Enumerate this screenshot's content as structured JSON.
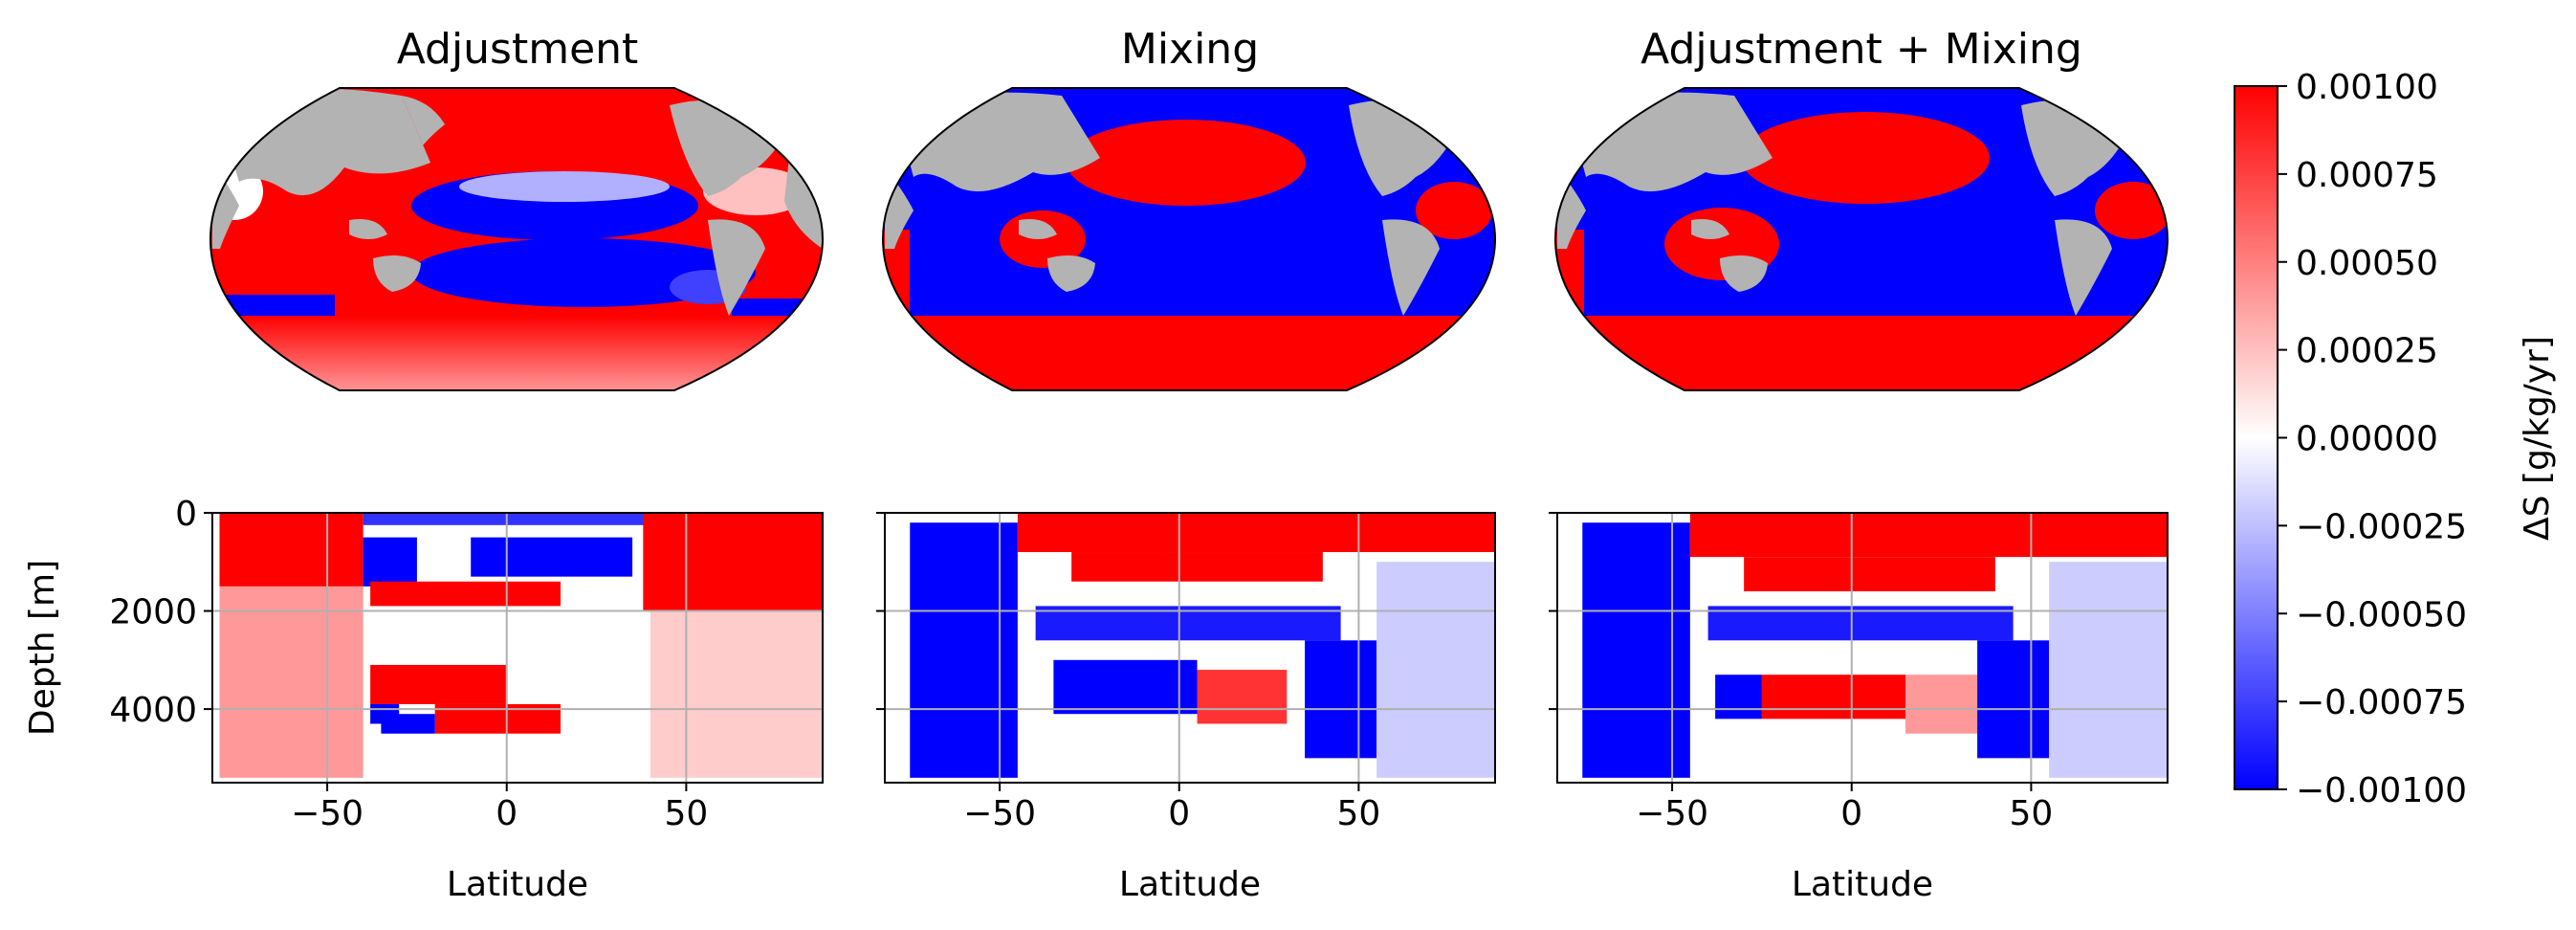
{
  "figure": {
    "panel_titles": [
      "Adjustment",
      "Mixing",
      "Adjustment + Mixing"
    ]
  },
  "colorbar": {
    "label": "ΔS [g/kg/yr]",
    "ticks": [
      "0.00100",
      "0.00075",
      "0.00050",
      "0.00025",
      "0.00000",
      "−0.00025",
      "−0.00050",
      "−0.00075",
      "−0.00100"
    ],
    "vmin": -0.001,
    "vmax": 0.001,
    "cmap": "bwr",
    "colors": {
      "min": "#0000ff",
      "mid": "#ffffff",
      "max": "#ff0000"
    }
  },
  "maps": {
    "projection": "Robinson",
    "land_color": "#b3b3b3"
  },
  "chart_data": [
    {
      "type": "heatmap",
      "title": "Adjustment",
      "xlabel": "Latitude",
      "ylabel": "Depth [m]",
      "xlim": [
        -82,
        88
      ],
      "ylim": [
        5500,
        0
      ],
      "xticks": [
        "−50",
        "0",
        "50"
      ],
      "yticks": [
        "0",
        "2000",
        "4000"
      ],
      "grid": true,
      "regions": [
        {
          "x": [
            -80,
            -40
          ],
          "y": [
            0,
            1500
          ],
          "value": 0.001
        },
        {
          "x": [
            -40,
            40
          ],
          "y": [
            0,
            250
          ],
          "value": -0.0008
        },
        {
          "x": [
            -40,
            -25
          ],
          "y": [
            500,
            1500
          ],
          "value": -0.001
        },
        {
          "x": [
            -10,
            35
          ],
          "y": [
            500,
            1300
          ],
          "value": -0.001
        },
        {
          "x": [
            38,
            88
          ],
          "y": [
            0,
            2000
          ],
          "value": 0.001
        },
        {
          "x": [
            -38,
            15
          ],
          "y": [
            1400,
            1900
          ],
          "value": 0.001
        },
        {
          "x": [
            -38,
            0
          ],
          "y": [
            3100,
            3900
          ],
          "value": 0.001
        },
        {
          "x": [
            -38,
            -30
          ],
          "y": [
            3900,
            4300
          ],
          "value": -0.001
        },
        {
          "x": [
            -20,
            15
          ],
          "y": [
            3900,
            4500
          ],
          "value": 0.001
        },
        {
          "x": [
            -35,
            -20
          ],
          "y": [
            4100,
            4500
          ],
          "value": -0.001
        },
        {
          "x": [
            -80,
            -40
          ],
          "y": [
            1500,
            5400
          ],
          "value": 0.0004
        },
        {
          "x": [
            40,
            88
          ],
          "y": [
            2000,
            5400
          ],
          "value": 0.0002
        }
      ]
    },
    {
      "type": "heatmap",
      "title": "Mixing",
      "xlabel": "Latitude",
      "ylabel": "",
      "xlim": [
        -82,
        88
      ],
      "ylim": [
        5500,
        0
      ],
      "xticks": [
        "−50",
        "0",
        "50"
      ],
      "yticks": [],
      "grid": true,
      "regions": [
        {
          "x": [
            -75,
            -45
          ],
          "y": [
            200,
            5400
          ],
          "value": -0.001
        },
        {
          "x": [
            -45,
            88
          ],
          "y": [
            0,
            800
          ],
          "value": 0.001
        },
        {
          "x": [
            -30,
            40
          ],
          "y": [
            800,
            1400
          ],
          "value": 0.001
        },
        {
          "x": [
            -40,
            45
          ],
          "y": [
            1900,
            2600
          ],
          "value": -0.0009
        },
        {
          "x": [
            -35,
            5
          ],
          "y": [
            3000,
            4100
          ],
          "value": -0.001
        },
        {
          "x": [
            5,
            30
          ],
          "y": [
            3200,
            4300
          ],
          "value": 0.0008
        },
        {
          "x": [
            35,
            55
          ],
          "y": [
            2600,
            5000
          ],
          "value": -0.001
        },
        {
          "x": [
            55,
            88
          ],
          "y": [
            1000,
            5400
          ],
          "value": -0.0002
        }
      ]
    },
    {
      "type": "heatmap",
      "title": "Adjustment + Mixing",
      "xlabel": "Latitude",
      "ylabel": "",
      "xlim": [
        -82,
        88
      ],
      "ylim": [
        5500,
        0
      ],
      "xticks": [
        "−50",
        "0",
        "50"
      ],
      "yticks": [],
      "grid": true,
      "regions": [
        {
          "x": [
            -75,
            -45
          ],
          "y": [
            200,
            5400
          ],
          "value": -0.001
        },
        {
          "x": [
            -45,
            88
          ],
          "y": [
            0,
            900
          ],
          "value": 0.001
        },
        {
          "x": [
            -30,
            40
          ],
          "y": [
            900,
            1600
          ],
          "value": 0.001
        },
        {
          "x": [
            -40,
            45
          ],
          "y": [
            1900,
            2600
          ],
          "value": -0.0009
        },
        {
          "x": [
            -38,
            -25
          ],
          "y": [
            3300,
            4200
          ],
          "value": -0.001
        },
        {
          "x": [
            -25,
            15
          ],
          "y": [
            3300,
            4200
          ],
          "value": 0.001
        },
        {
          "x": [
            15,
            35
          ],
          "y": [
            3300,
            4500
          ],
          "value": 0.0004
        },
        {
          "x": [
            35,
            55
          ],
          "y": [
            2600,
            5000
          ],
          "value": -0.001
        },
        {
          "x": [
            55,
            88
          ],
          "y": [
            1000,
            5400
          ],
          "value": -0.0002
        }
      ]
    }
  ]
}
